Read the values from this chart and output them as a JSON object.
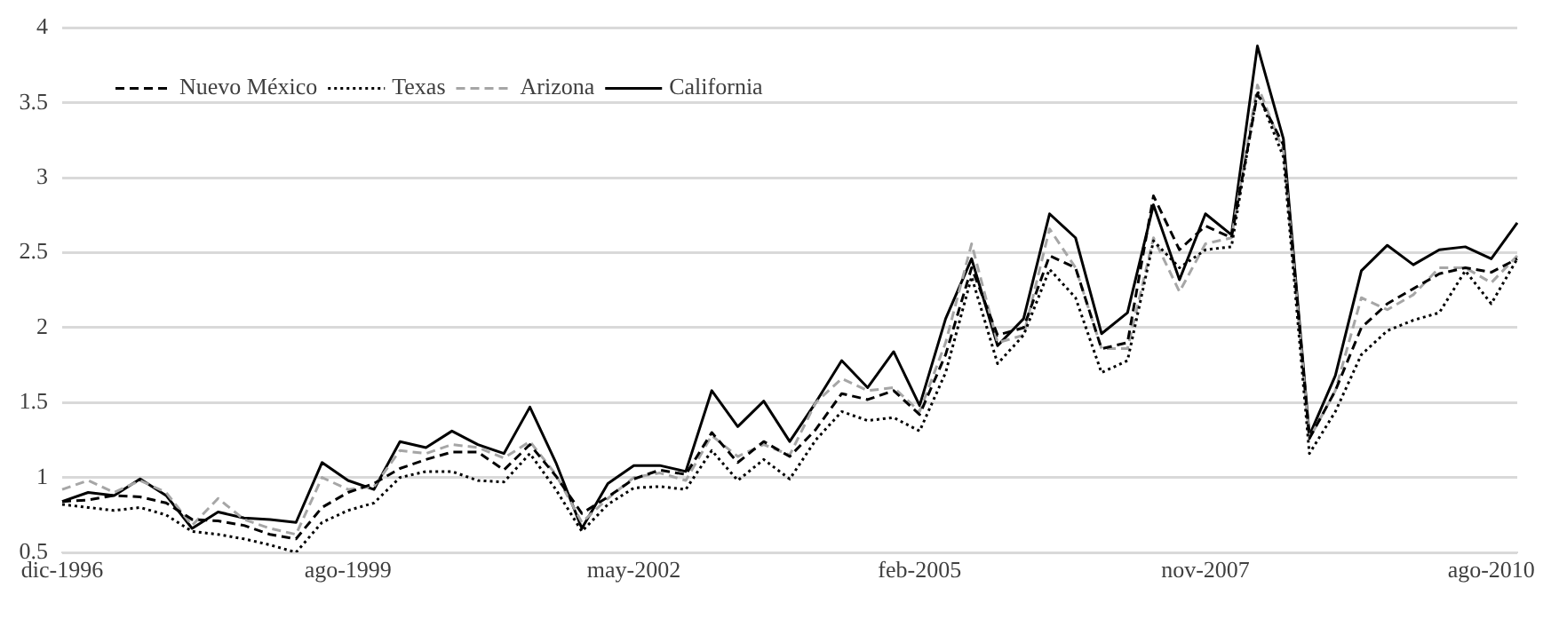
{
  "chart_data": {
    "type": "line",
    "categories": [
      "dic-1996",
      null,
      null,
      null,
      null,
      null,
      null,
      null,
      null,
      null,
      null,
      "ago-1999",
      null,
      null,
      null,
      null,
      null,
      null,
      null,
      null,
      null,
      null,
      "may-2002",
      null,
      null,
      null,
      null,
      null,
      null,
      null,
      null,
      null,
      null,
      "feb-2005",
      null,
      null,
      null,
      null,
      null,
      null,
      null,
      null,
      null,
      null,
      "nov-2007",
      null,
      null,
      null,
      null,
      null,
      null,
      null,
      null,
      null,
      null,
      "ago-2010",
      null
    ],
    "ylim": [
      0.5,
      4
    ],
    "yticks": [
      0.5,
      1,
      1.5,
      2,
      2.5,
      3,
      3.5,
      4
    ],
    "grid": "y",
    "legend": "top left",
    "marker": "none",
    "series": [
      {
        "name": "Nuevo México",
        "color": "#000000",
        "line_style": "dashed",
        "values": [
          0.84,
          0.85,
          0.88,
          0.87,
          0.83,
          0.72,
          0.71,
          0.68,
          0.62,
          0.59,
          0.8,
          0.9,
          0.96,
          1.06,
          1.12,
          1.17,
          1.17,
          1.05,
          1.22,
          1.01,
          0.76,
          0.87,
          0.99,
          1.05,
          1.02,
          1.3,
          1.1,
          1.24,
          1.14,
          1.32,
          1.56,
          1.52,
          1.58,
          1.42,
          1.82,
          2.4,
          1.95,
          2.0,
          2.48,
          2.4,
          1.86,
          1.9,
          2.88,
          2.52,
          2.68,
          2.6,
          3.56,
          3.22,
          1.26,
          1.58,
          2.0,
          2.16,
          2.26,
          2.36,
          2.4,
          2.37,
          2.46
        ]
      },
      {
        "name": "Texas",
        "color": "#000000",
        "line_style": "dotted",
        "values": [
          0.82,
          0.8,
          0.78,
          0.8,
          0.75,
          0.64,
          0.62,
          0.59,
          0.55,
          0.5,
          0.7,
          0.78,
          0.83,
          1.0,
          1.04,
          1.04,
          0.98,
          0.97,
          1.16,
          0.92,
          0.64,
          0.82,
          0.93,
          0.94,
          0.92,
          1.18,
          0.98,
          1.12,
          0.99,
          1.25,
          1.44,
          1.38,
          1.4,
          1.31,
          1.7,
          2.34,
          1.76,
          1.95,
          2.39,
          2.2,
          1.7,
          1.78,
          2.58,
          2.4,
          2.52,
          2.54,
          3.58,
          3.14,
          1.16,
          1.44,
          1.82,
          1.98,
          2.05,
          2.1,
          2.38,
          2.16,
          2.46
        ]
      },
      {
        "name": "Arizona",
        "color": "#a6a6a6",
        "line_style": "dashed",
        "values": [
          0.92,
          0.98,
          0.9,
          0.98,
          0.9,
          0.68,
          0.86,
          0.72,
          0.66,
          0.62,
          1.0,
          0.92,
          0.94,
          1.18,
          1.16,
          1.22,
          1.2,
          1.13,
          1.24,
          1.02,
          0.7,
          0.86,
          1.0,
          1.03,
          0.98,
          1.28,
          1.14,
          1.22,
          1.15,
          1.5,
          1.66,
          1.58,
          1.6,
          1.44,
          1.9,
          2.56,
          1.9,
          1.95,
          2.66,
          2.4,
          1.86,
          1.86,
          2.6,
          2.24,
          2.56,
          2.6,
          3.62,
          3.18,
          1.26,
          1.58,
          2.2,
          2.12,
          2.22,
          2.4,
          2.4,
          2.3,
          2.48
        ]
      },
      {
        "name": "California",
        "color": "#000000",
        "line_style": "solid",
        "values": [
          0.84,
          0.9,
          0.88,
          0.99,
          0.88,
          0.66,
          0.77,
          0.73,
          0.72,
          0.7,
          1.1,
          0.98,
          0.92,
          1.24,
          1.2,
          1.31,
          1.22,
          1.16,
          1.47,
          1.1,
          0.66,
          0.96,
          1.08,
          1.08,
          1.04,
          1.58,
          1.34,
          1.51,
          1.24,
          1.5,
          1.78,
          1.6,
          1.84,
          1.48,
          2.06,
          2.46,
          1.88,
          2.06,
          2.76,
          2.6,
          1.96,
          2.1,
          2.82,
          2.32,
          2.76,
          2.62,
          3.88,
          3.26,
          1.28,
          1.68,
          2.38,
          2.55,
          2.42,
          2.52,
          2.54,
          2.46,
          2.7
        ]
      }
    ]
  }
}
